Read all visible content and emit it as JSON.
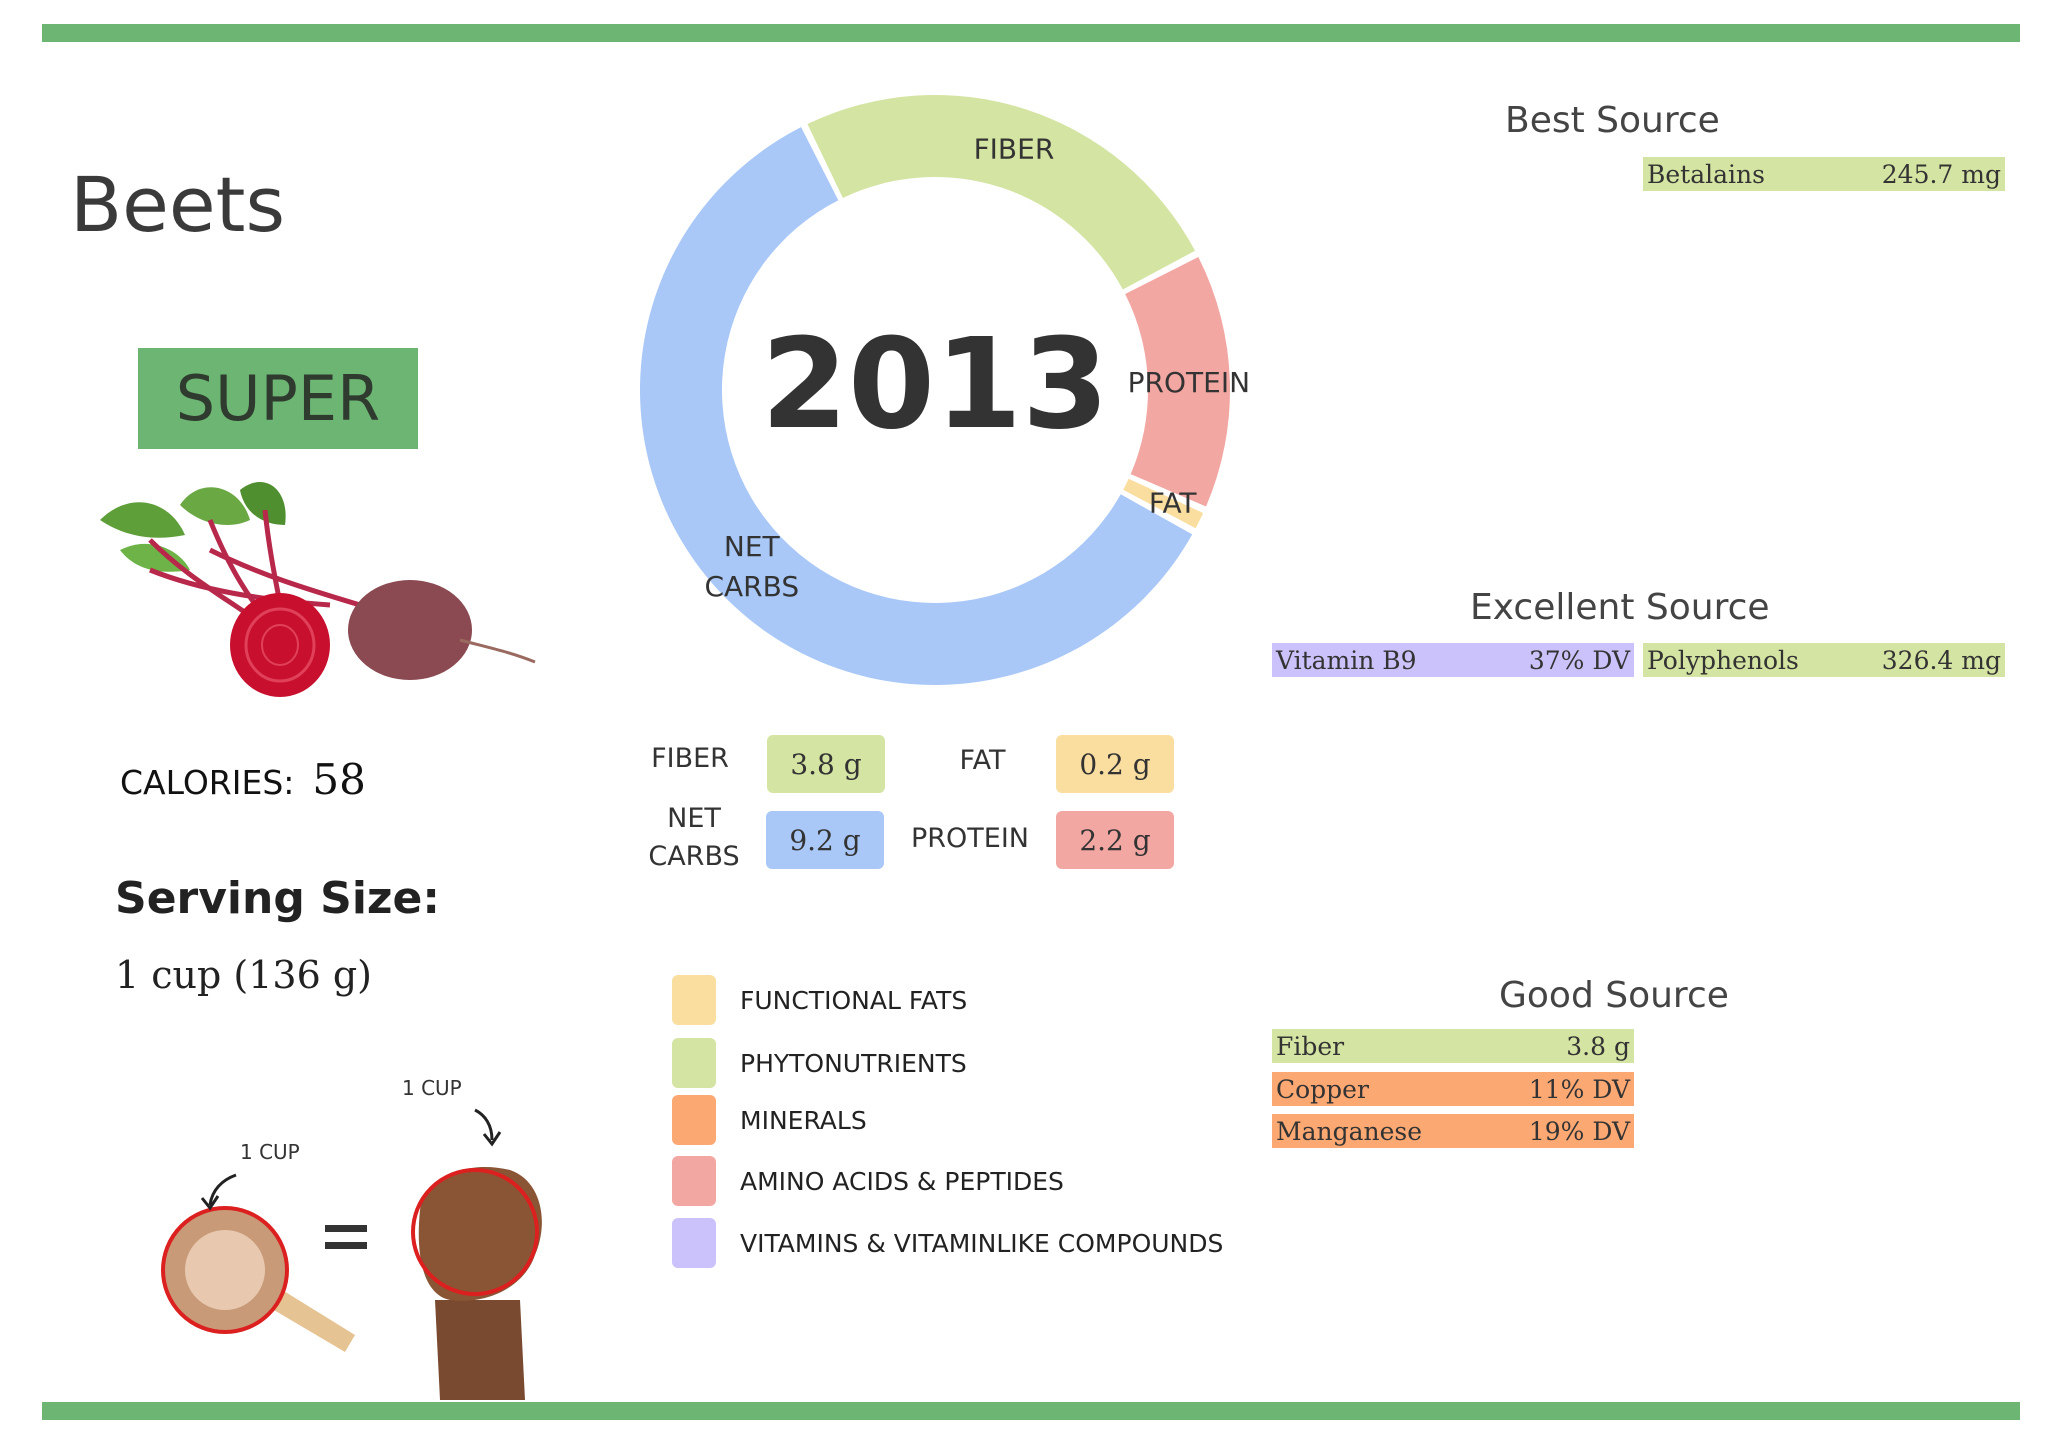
{
  "food": {
    "name": "Beets",
    "rating": "SUPER",
    "calories_label": "CALORIES:",
    "calories_value": "58",
    "serving_title": "Serving Size:",
    "serving_value": "1 cup (136 g)"
  },
  "measure": {
    "cup_label": "1 CUP",
    "fist_label": "1 CUP",
    "equals": "="
  },
  "colors": {
    "brand_green": "#6cb573",
    "fiber": "#d4e4a2",
    "protein": "#f3a7a3",
    "fat": "#f9dea0",
    "net_carbs": "#a9c8f7",
    "minerals": "#fca873",
    "vitamins": "#cbc2fb"
  },
  "chart_data": {
    "type": "pie",
    "center_label": "2013",
    "slices": [
      {
        "label": "FIBER",
        "value": 3.8,
        "unit": "g",
        "color": "#d4e4a2"
      },
      {
        "label": "PROTEIN",
        "value": 2.2,
        "unit": "g",
        "color": "#f3a7a3"
      },
      {
        "label": "FAT",
        "value": 0.2,
        "unit": "g",
        "color": "#f9dea0"
      },
      {
        "label": "NET CARBS",
        "value": 9.2,
        "unit": "g",
        "color": "#a9c8f7"
      }
    ]
  },
  "macros": {
    "fiber_label": "FIBER",
    "fiber_value": "3.8 g",
    "fat_label": "FAT",
    "fat_value": "0.2 g",
    "net_carbs_label_1": "NET",
    "net_carbs_label_2": "CARBS",
    "net_carbs_value": "9.2 g",
    "protein_label": "PROTEIN",
    "protein_value": "2.2 g"
  },
  "legend": [
    {
      "label": "FUNCTIONAL  FATS",
      "color": "#f9dea0"
    },
    {
      "label": "PHYTONUTRIENTS",
      "color": "#d4e4a2"
    },
    {
      "label": "MINERALS",
      "color": "#fca873"
    },
    {
      "label": "AMINO ACIDS & PEPTIDES",
      "color": "#f3a7a3"
    },
    {
      "label": "VITAMINS & VITAMINLIKE COMPOUNDS",
      "color": "#cbc2fb"
    }
  ],
  "sources": {
    "best": {
      "title": "Best Source",
      "items": [
        {
          "name": "Betalains",
          "amount": "245.7 mg",
          "color": "#d4e4a2"
        }
      ]
    },
    "excellent": {
      "title": "Excellent Source",
      "items": [
        {
          "name": "Vitamin B9",
          "amount": "37% DV",
          "color": "#cbc2fb"
        },
        {
          "name": "Polyphenols",
          "amount": "326.4 mg",
          "color": "#d4e4a2"
        }
      ]
    },
    "good": {
      "title": "Good Source",
      "items": [
        {
          "name": "Fiber",
          "amount": "3.8 g",
          "color": "#d4e4a2"
        },
        {
          "name": "Copper",
          "amount": "11% DV",
          "color": "#fca873"
        },
        {
          "name": "Manganese",
          "amount": "19% DV",
          "color": "#fca873"
        }
      ]
    }
  }
}
